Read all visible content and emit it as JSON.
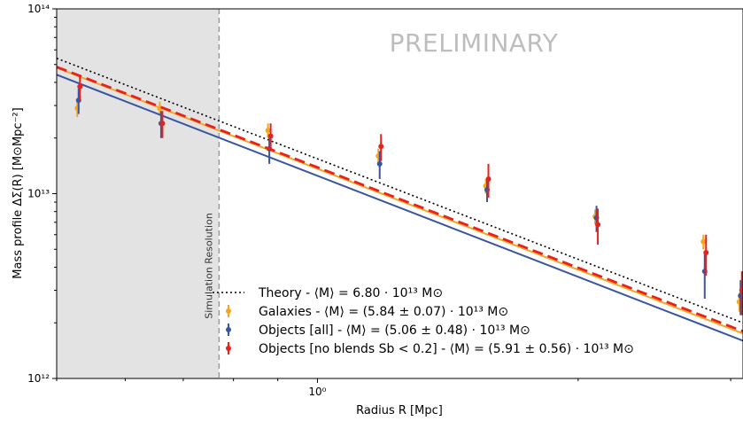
{
  "chart_data": {
    "type": "scatter",
    "title": "",
    "watermark": "PRELIMINARY",
    "xlabel": "Radius R [Mpc]",
    "ylabel": "Mass profile ΔΣ(R) [M⊙Mpc⁻²]",
    "xscale": "log",
    "yscale": "log",
    "xlim": [
      0.5,
      3.1
    ],
    "ylim": [
      1000000000000.0,
      100000000000000.0
    ],
    "x_ticks": [
      {
        "value": 1.0,
        "label": "10⁰"
      }
    ],
    "y_ticks": [
      {
        "value": 1000000000000.0,
        "label": "10¹²"
      },
      {
        "value": 10000000000000.0,
        "label": "10¹³"
      },
      {
        "value": 100000000000000.0,
        "label": "10¹⁴"
      }
    ],
    "shaded_region": {
      "x_from": 0.5,
      "x_to": 0.77,
      "color": "#e3e3e3",
      "label": "Simulation Resolution"
    },
    "legend_position": "lower-right",
    "series": [
      {
        "name": "Theory - ⟨M⟩ = 6.80 · 10¹³ M⊙",
        "kind": "line",
        "style": "dotted",
        "color": "#000000",
        "x": [
          0.5,
          3.1
        ],
        "y": [
          54000000000000.0,
          2000000000000.0
        ]
      },
      {
        "name": "Galaxies - ⟨M⟩ = (5.84 ± 0.07) · 10¹³ M⊙",
        "kind": "points+line",
        "style": "solid",
        "color": "#f5a623",
        "line": {
          "x": [
            0.5,
            3.1
          ],
          "y": [
            48000000000000.0,
            1750000000000.0
          ]
        },
        "x": [
          0.53,
          0.66,
          0.88,
          1.18,
          1.57,
          2.1,
          2.8,
          3.08
        ],
        "y": [
          29000000000000.0,
          29000000000000.0,
          22000000000000.0,
          16000000000000.0,
          11000000000000.0,
          7500000000000.0,
          5500000000000.0,
          2600000000000.0
        ],
        "err": [
          3000000000000.0,
          2500000000000.0,
          2000000000000.0,
          1500000000000.0,
          1000000000000.0,
          700000000000.0,
          500000000000.0,
          300000000000.0
        ]
      },
      {
        "name": "Objects [all] - ⟨M⟩ = (5.06 ± 0.48) · 10¹³ M⊙",
        "kind": "points+line",
        "style": "solid",
        "color": "#3a55a0",
        "line": {
          "x": [
            0.5,
            3.1
          ],
          "y": [
            44000000000000.0,
            1600000000000.0
          ]
        },
        "x": [
          0.53,
          0.66,
          0.88,
          1.18,
          1.57,
          2.1,
          2.8,
          3.08
        ],
        "y": [
          32000000000000.0,
          24000000000000.0,
          17500000000000.0,
          14500000000000.0,
          10500000000000.0,
          7400000000000.0,
          3800000000000.0,
          2800000000000.0
        ],
        "err": [
          5000000000000.0,
          4000000000000.0,
          3000000000000.0,
          2500000000000.0,
          1500000000000.0,
          1200000000000.0,
          1100000000000.0,
          600000000000.0
        ]
      },
      {
        "name": "Objects [no blends Sb < 0.2] - ⟨M⟩ = (5.91 ± 0.56) · 10¹³ M⊙",
        "kind": "points+line",
        "style": "dashed",
        "color": "#e8211c",
        "line": {
          "x": [
            0.5,
            3.1
          ],
          "y": [
            48500000000000.0,
            1800000000000.0
          ]
        },
        "x": [
          0.53,
          0.66,
          0.88,
          1.18,
          1.57,
          2.1,
          2.8,
          3.08
        ],
        "y": [
          38000000000000.0,
          24000000000000.0,
          20500000000000.0,
          18000000000000.0,
          12000000000000.0,
          6800000000000.0,
          4800000000000.0,
          3000000000000.0
        ],
        "err": [
          6000000000000.0,
          4000000000000.0,
          3500000000000.0,
          3000000000000.0,
          2500000000000.0,
          1500000000000.0,
          1200000000000.0,
          800000000000.0
        ]
      }
    ]
  }
}
